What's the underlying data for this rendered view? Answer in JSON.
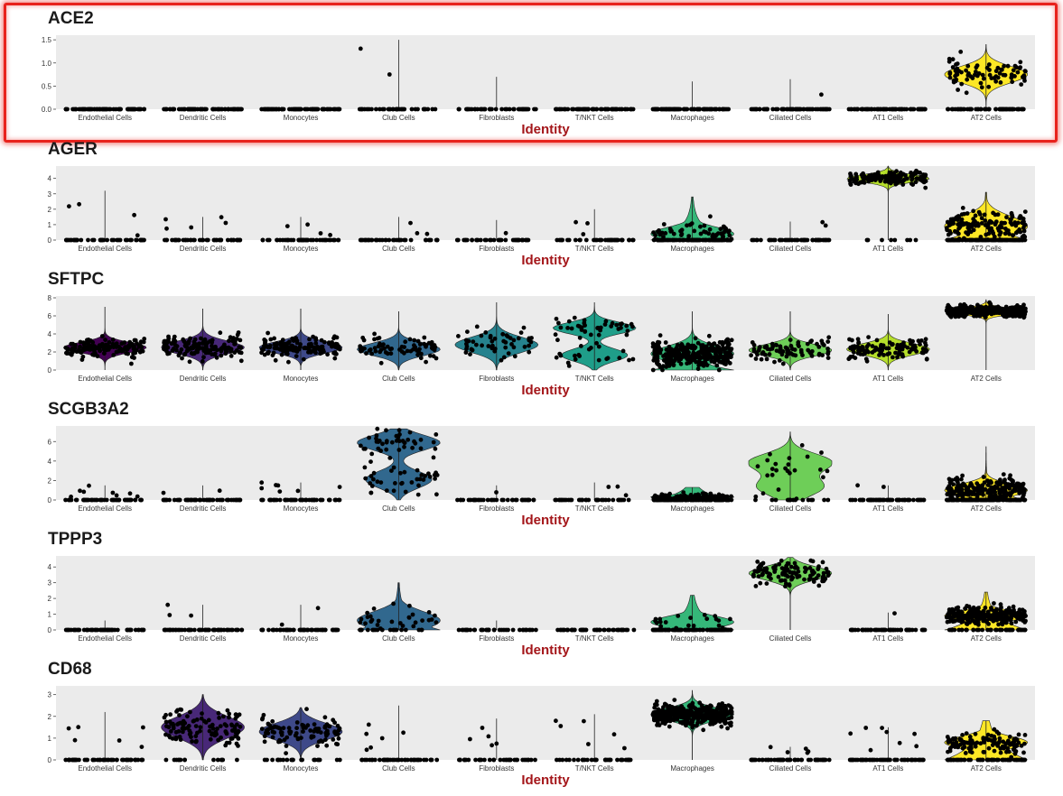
{
  "highlight_color": "#e8221c",
  "chart_data": [
    {
      "type": "violin",
      "title": "ACE2",
      "xlabel": "Identity",
      "ylabel": "",
      "ylim": [
        0,
        1.6
      ],
      "yticks": [
        0.0,
        0.5,
        1.0,
        1.5
      ],
      "ytick_labels": [
        "0.0",
        "0.5",
        "1.0",
        "1.5"
      ],
      "highlighted": true,
      "categories": [
        "Endothelial Cells",
        "Dendritic Cells",
        "Monocytes",
        "Club Cells",
        "Fibroblasts",
        "T/NKT Cells",
        "Macrophages",
        "Ciliated Cells",
        "AT1 Cells",
        "AT2 Cells"
      ],
      "colors": [
        "#440154",
        "#482878",
        "#3e4989",
        "#31688e",
        "#26828e",
        "#1f9e89",
        "#35b779",
        "#6ece58",
        "#b5de2b",
        "#fde725"
      ],
      "max_values": [
        0,
        0,
        0,
        1.5,
        0.7,
        0,
        0.6,
        0.65,
        0,
        1.4
      ],
      "median_values": [
        0,
        0,
        0,
        0,
        0,
        0,
        0,
        0,
        0,
        0.75
      ]
    },
    {
      "type": "violin",
      "title": "AGER",
      "xlabel": "Identity",
      "ylabel": "",
      "ylim": [
        0,
        4.8
      ],
      "yticks": [
        0,
        1,
        2,
        3,
        4
      ],
      "ytick_labels": [
        "0",
        "1",
        "2",
        "3",
        "4"
      ],
      "categories": [
        "Endothelial Cells",
        "Dendritic Cells",
        "Monocytes",
        "Club Cells",
        "Fibroblasts",
        "T/NKT Cells",
        "Macrophages",
        "Ciliated Cells",
        "AT1 Cells",
        "AT2 Cells"
      ],
      "colors": [
        "#440154",
        "#482878",
        "#3e4989",
        "#31688e",
        "#26828e",
        "#1f9e89",
        "#35b779",
        "#6ece58",
        "#b5de2b",
        "#fde725"
      ],
      "max_values": [
        3.2,
        1.5,
        1.5,
        1.5,
        1.3,
        2.0,
        2.8,
        1.2,
        4.8,
        3.1
      ],
      "median_values": [
        0,
        0,
        0,
        0,
        0,
        0,
        0.3,
        0,
        4.0,
        0.8
      ]
    },
    {
      "type": "violin",
      "title": "SFTPC",
      "xlabel": "Identity",
      "ylabel": "",
      "ylim": [
        0,
        8.2
      ],
      "yticks": [
        0,
        2,
        4,
        6,
        8
      ],
      "ytick_labels": [
        "0",
        "2",
        "4",
        "6",
        "8"
      ],
      "categories": [
        "Endothelial Cells",
        "Dendritic Cells",
        "Monocytes",
        "Club Cells",
        "Fibroblasts",
        "T/NKT Cells",
        "Macrophages",
        "Ciliated Cells",
        "AT1 Cells",
        "AT2 Cells"
      ],
      "colors": [
        "#440154",
        "#482878",
        "#3e4989",
        "#31688e",
        "#26828e",
        "#1f9e89",
        "#35b779",
        "#6ece58",
        "#b5de2b",
        "#fde725"
      ],
      "max_values": [
        7,
        6.8,
        6.8,
        6.5,
        7.5,
        7.5,
        6.5,
        6.5,
        6.2,
        7.8
      ],
      "median_values": [
        2.5,
        2.5,
        2.5,
        2.3,
        2.8,
        3.0,
        1.8,
        2.2,
        2.3,
        6.5
      ]
    },
    {
      "type": "violin",
      "title": "SCGB3A2",
      "xlabel": "Identity",
      "ylabel": "",
      "ylim": [
        0,
        7.6
      ],
      "yticks": [
        0,
        2,
        4,
        6
      ],
      "ytick_labels": [
        "0",
        "2",
        "4",
        "6"
      ],
      "categories": [
        "Endothelial Cells",
        "Dendritic Cells",
        "Monocytes",
        "Club Cells",
        "Fibroblasts",
        "T/NKT Cells",
        "Macrophages",
        "Ciliated Cells",
        "AT1 Cells",
        "AT2 Cells"
      ],
      "colors": [
        "#440154",
        "#482878",
        "#3e4989",
        "#31688e",
        "#26828e",
        "#1f9e89",
        "#35b779",
        "#6ece58",
        "#b5de2b",
        "#fde725"
      ],
      "max_values": [
        1.5,
        1.5,
        1.8,
        7.3,
        1.5,
        1.8,
        1.3,
        7.0,
        1.5,
        5.5
      ],
      "median_values": [
        0,
        0,
        0,
        3.5,
        0,
        0,
        0.3,
        1.5,
        0,
        1.0
      ]
    },
    {
      "type": "violin",
      "title": "TPPP3",
      "xlabel": "Identity",
      "ylabel": "",
      "ylim": [
        0,
        4.7
      ],
      "yticks": [
        0,
        1,
        2,
        3,
        4
      ],
      "ytick_labels": [
        "0",
        "1",
        "2",
        "3",
        "4"
      ],
      "categories": [
        "Endothelial Cells",
        "Dendritic Cells",
        "Monocytes",
        "Club Cells",
        "Fibroblasts",
        "T/NKT Cells",
        "Macrophages",
        "Ciliated Cells",
        "AT1 Cells",
        "AT2 Cells"
      ],
      "colors": [
        "#440154",
        "#482878",
        "#3e4989",
        "#31688e",
        "#26828e",
        "#1f9e89",
        "#35b779",
        "#6ece58",
        "#b5de2b",
        "#fde725"
      ],
      "max_values": [
        0.6,
        1.6,
        1.6,
        3.0,
        0.6,
        0,
        2.2,
        4.6,
        1.1,
        2.4
      ],
      "median_values": [
        0,
        0,
        0,
        0.3,
        0,
        0,
        0.3,
        3.6,
        0,
        0.9
      ]
    },
    {
      "type": "violin",
      "title": "CD68",
      "xlabel": "Identity",
      "ylabel": "",
      "ylim": [
        0,
        3.4
      ],
      "yticks": [
        0,
        1,
        2,
        3
      ],
      "ytick_labels": [
        "0",
        "1",
        "2",
        "3"
      ],
      "categories": [
        "Endothelial Cells",
        "Dendritic Cells",
        "Monocytes",
        "Club Cells",
        "Fibroblasts",
        "T/NKT Cells",
        "Macrophages",
        "Ciliated Cells",
        "AT1 Cells",
        "AT2 Cells"
      ],
      "colors": [
        "#440154",
        "#482878",
        "#3e4989",
        "#31688e",
        "#26828e",
        "#1f9e89",
        "#35b779",
        "#6ece58",
        "#b5de2b",
        "#fde725"
      ],
      "max_values": [
        2.2,
        3.0,
        2.4,
        2.5,
        1.9,
        2.1,
        3.2,
        0.6,
        1.5,
        1.8
      ],
      "median_values": [
        0,
        1.5,
        1.3,
        0,
        0,
        0,
        2.1,
        0,
        0,
        0.8
      ]
    }
  ]
}
